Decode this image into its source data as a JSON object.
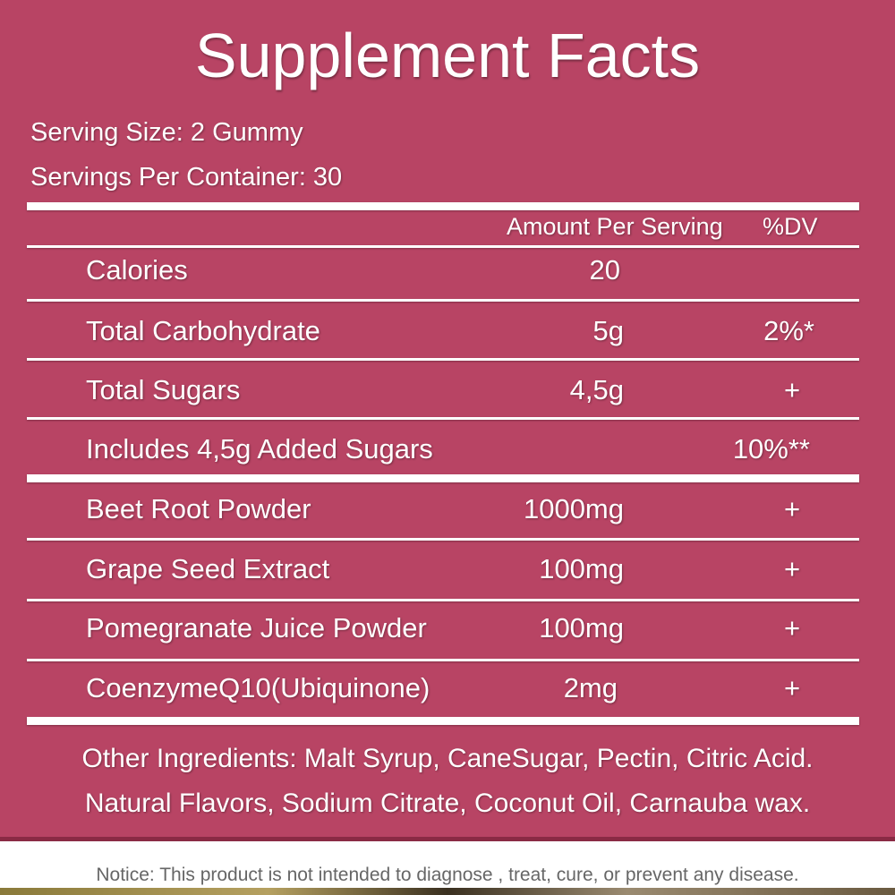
{
  "title": "Supplement Facts",
  "serving_size": "Serving Size: 2 Gummy",
  "servings_per_container": "Servings Per Container: 30",
  "header": {
    "amount": "Amount Per Serving",
    "dv": "%DV"
  },
  "rows": [
    {
      "label": "Calories",
      "amount": "20",
      "dv": ""
    },
    {
      "label": "Total Carbohydrate",
      "amount": "5g",
      "dv": "2%*"
    },
    {
      "label": "Total Sugars",
      "amount": "4,5g",
      "dv": "+"
    },
    {
      "label": "Includes 4,5g Added Sugars",
      "amount": "",
      "dv": "10%**"
    },
    {
      "label": "Beet Root Powder",
      "amount": "1000mg",
      "dv": "+"
    },
    {
      "label": "Grape Seed Extract",
      "amount": "100mg",
      "dv": "+"
    },
    {
      "label": "Pomegranate Juice Powder",
      "amount": "100mg",
      "dv": "+"
    },
    {
      "label": "CoenzymeQ10(Ubiquinone)",
      "amount": "2mg",
      "dv": "+"
    }
  ],
  "other_ingredients": [
    "Other Ingredients: Malt Syrup, CaneSugar, Pectin, Citric Acid.",
    "Natural Flavors, Sodium Citrate, Coconut Oil, Carnauba wax."
  ],
  "notice": "Notice: This product is not intended to diagnose , treat, cure, or prevent any disease.",
  "colors": {
    "panel": "#b84464",
    "text": "#ffffff",
    "notice": "#666666"
  }
}
